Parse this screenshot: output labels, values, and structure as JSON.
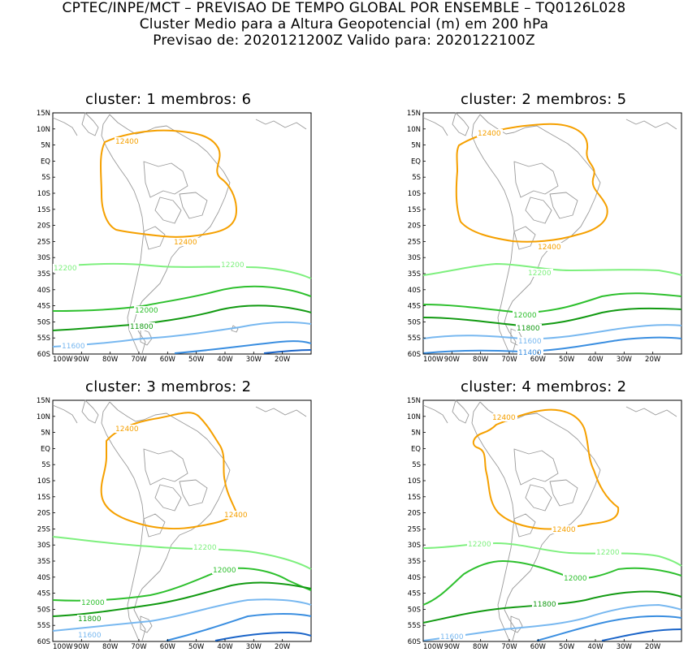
{
  "header": {
    "line1": "CPTEC/INPE/MCT – PREVISAO DE TEMPO GLOBAL POR ENSEMBLE – TQ0126L028",
    "line2": "Cluster Medio para a Altura Geopotencial (m) em 200 hPa",
    "line3": "Previsao de: 2020121200Z    Valido para: 2020122100Z"
  },
  "axes": {
    "lat_labels": [
      "15N",
      "10N",
      "5N",
      "EQ",
      "5S",
      "10S",
      "15S",
      "20S",
      "25S",
      "30S",
      "35S",
      "40S",
      "45S",
      "50S",
      "55S",
      "60S"
    ],
    "lon_labels": [
      "100W",
      "90W",
      "80W",
      "70W",
      "60W",
      "50W",
      "40W",
      "30W",
      "20W"
    ]
  },
  "colors": {
    "c12400": "#f5a000",
    "c12200": "#7ef07e",
    "c12000": "#2ec02e",
    "c11800": "#129a12",
    "c11600": "#78b8f0",
    "c11400": "#3a8ee0",
    "c11200": "#1a64c8",
    "coast": "#9a9a9a"
  },
  "panels": [
    {
      "title": "cluster: 1   membros: 6",
      "labels": {
        "l12400a": "12400",
        "l12400b": "12400",
        "l12200a": "12200",
        "l12200b": "12200",
        "l12000": "12000",
        "l11800": "11800",
        "l11600": "11600"
      }
    },
    {
      "title": "cluster: 2   membros: 5",
      "labels": {
        "l12400a": "12400",
        "l12400b": "12400",
        "l12200": "12200",
        "l12000": "12000",
        "l11800": "11800",
        "l11600": "11600",
        "l11400": "11400"
      }
    },
    {
      "title": "cluster: 3   membros: 2",
      "labels": {
        "l12400a": "12400",
        "l12400b": "12400",
        "l12200": "12200",
        "l12000a": "12000",
        "l12000b": "12000",
        "l11800": "11800",
        "l11600": "11600"
      }
    },
    {
      "title": "cluster: 4   membros: 2",
      "labels": {
        "l12400a": "12400",
        "l12400b": "12400",
        "l12200a": "12200",
        "l12200b": "12200",
        "l12000": "12000",
        "l11800": "11800",
        "l11600": "11600"
      }
    }
  ]
}
